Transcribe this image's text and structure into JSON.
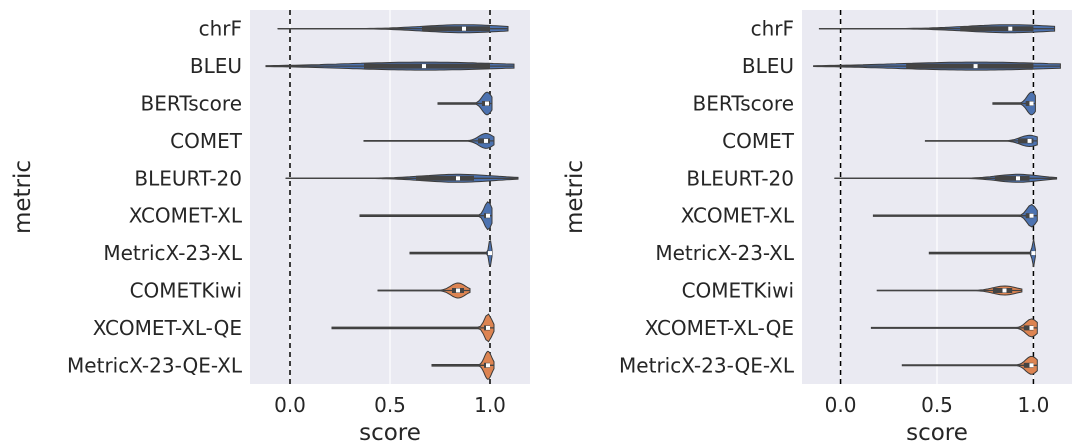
{
  "chart_data": [
    {
      "type": "violin",
      "orientation": "horizontal",
      "xlabel": "score",
      "ylabel": "metric",
      "xlim": [
        -0.2,
        1.2
      ],
      "x_ticks": [
        "0.0",
        "0.5",
        "1.0"
      ],
      "x_tick_values": [
        0.0,
        0.5,
        1.0
      ],
      "reference_lines": [
        0.0,
        1.0
      ],
      "grid": true,
      "categories": [
        "chrF",
        "BLEU",
        "BERTscore",
        "COMET",
        "BLEURT-20",
        "XCOMET-XL",
        "MetricX-23-XL",
        "COMETKiwi",
        "XCOMET-XL-QE",
        "MetricX-23-QE-XL"
      ],
      "colors": [
        "#4c72b0",
        "#4c72b0",
        "#4c72b0",
        "#4c72b0",
        "#4c72b0",
        "#4c72b0",
        "#4c72b0",
        "#dd8452",
        "#dd8452",
        "#dd8452"
      ],
      "series": [
        {
          "min": -0.06,
          "q1": 0.66,
          "median": 0.87,
          "q3": 1.0,
          "max": 1.09
        },
        {
          "min": -0.12,
          "q1": 0.37,
          "median": 0.67,
          "q3": 1.0,
          "max": 1.12
        },
        {
          "min": 0.74,
          "q1": 0.96,
          "median": 0.985,
          "q3": 1.0,
          "max": 1.01
        },
        {
          "min": 0.37,
          "q1": 0.94,
          "median": 0.98,
          "q3": 1.0,
          "max": 1.02
        },
        {
          "min": -0.02,
          "q1": 0.63,
          "median": 0.84,
          "q3": 0.92,
          "max": 1.14
        },
        {
          "min": 0.35,
          "q1": 0.97,
          "median": 0.99,
          "q3": 1.0,
          "max": 1.01
        },
        {
          "min": 0.6,
          "q1": 0.99,
          "median": 1.0,
          "q3": 1.0,
          "max": 1.01
        },
        {
          "min": 0.44,
          "q1": 0.81,
          "median": 0.84,
          "q3": 0.87,
          "max": 0.9
        },
        {
          "min": 0.21,
          "q1": 0.97,
          "median": 0.99,
          "q3": 1.0,
          "max": 1.02
        },
        {
          "min": 0.71,
          "q1": 0.97,
          "median": 0.99,
          "q3": 1.0,
          "max": 1.02
        }
      ]
    },
    {
      "type": "violin",
      "orientation": "horizontal",
      "xlabel": "score",
      "ylabel": "metric",
      "xlim": [
        -0.2,
        1.2
      ],
      "x_ticks": [
        "0.0",
        "0.5",
        "1.0"
      ],
      "x_tick_values": [
        0.0,
        0.5,
        1.0
      ],
      "reference_lines": [
        0.0,
        1.0
      ],
      "grid": true,
      "categories": [
        "chrF",
        "BLEU",
        "BERTscore",
        "COMET",
        "BLEURT-20",
        "XCOMET-XL",
        "MetricX-23-XL",
        "COMETKiwi",
        "XCOMET-XL-QE",
        "MetricX-23-QE-XL"
      ],
      "colors": [
        "#4c72b0",
        "#4c72b0",
        "#4c72b0",
        "#4c72b0",
        "#4c72b0",
        "#4c72b0",
        "#4c72b0",
        "#dd8452",
        "#dd8452",
        "#dd8452"
      ],
      "series": [
        {
          "min": -0.11,
          "q1": 0.62,
          "median": 0.88,
          "q3": 1.0,
          "max": 1.11
        },
        {
          "min": -0.14,
          "q1": 0.34,
          "median": 0.7,
          "q3": 1.0,
          "max": 1.14
        },
        {
          "min": 0.79,
          "q1": 0.96,
          "median": 0.99,
          "q3": 1.0,
          "max": 1.01
        },
        {
          "min": 0.44,
          "q1": 0.92,
          "median": 0.98,
          "q3": 1.0,
          "max": 1.02
        },
        {
          "min": -0.03,
          "q1": 0.8,
          "median": 0.92,
          "q3": 0.98,
          "max": 1.12
        },
        {
          "min": 0.17,
          "q1": 0.96,
          "median": 0.99,
          "q3": 1.0,
          "max": 1.02
        },
        {
          "min": 0.46,
          "q1": 0.99,
          "median": 1.0,
          "q3": 1.0,
          "max": 1.01
        },
        {
          "min": 0.19,
          "q1": 0.79,
          "median": 0.85,
          "q3": 0.89,
          "max": 0.94
        },
        {
          "min": 0.16,
          "q1": 0.95,
          "median": 0.99,
          "q3": 1.0,
          "max": 1.02
        },
        {
          "min": 0.32,
          "q1": 0.95,
          "median": 0.99,
          "q3": 1.0,
          "max": 1.02
        }
      ]
    }
  ]
}
